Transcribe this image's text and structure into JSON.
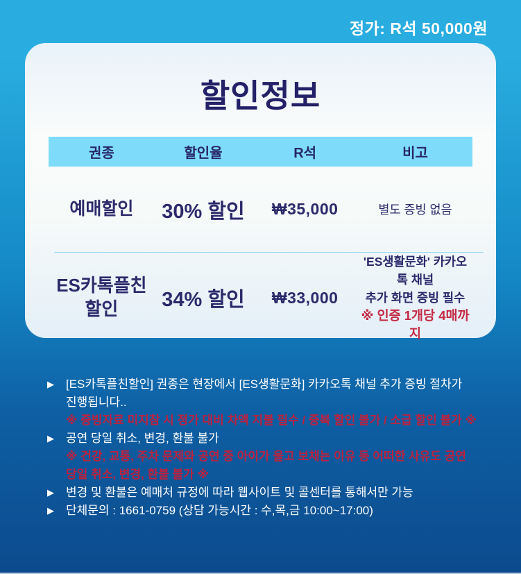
{
  "colors": {
    "page_top": "#29ade0",
    "page_bottom": "#0c4b8d",
    "card_bg": "#f4f9fa",
    "table_header_bg": "#7edcfa",
    "navy_text": "#2b2a6b",
    "warning_red_card": "#c42a44",
    "warning_red_notices": "#bb2340",
    "white_text": "#ffffff"
  },
  "header": {
    "price_label": "정가: R석 50,000원"
  },
  "card": {
    "title": "할인정보",
    "table": {
      "columns": [
        "권종",
        "할인율",
        "R석",
        "비고"
      ],
      "rows": [
        {
          "type": "예매할인",
          "discount": "30% 할인",
          "price": "₩35,000",
          "note": "별도 증빙 없음",
          "note_warning": ""
        },
        {
          "type": "ES카톡플친\n할인",
          "discount": "34% 할인",
          "price": "₩33,000",
          "note": "'ES생활문화' 카카오톡 채널\n추가 화면 증빙 필수",
          "note_warning": "※ 인증 1개당 4매까지"
        }
      ]
    }
  },
  "notices": {
    "bullet_glyph": "▶",
    "items": [
      {
        "style": "normal",
        "text": "[ES카톡플친할인] 권종은 현장에서 [ES생활문화] 카카오톡 채널 추가 증빙 절차가 진행됩니다.."
      },
      {
        "style": "warning",
        "text": "※ 증빙자료 미지참 시 정가 대비 차액 지불 필수 / 중복 할인 불가 / 소급 할인 불가 ※"
      },
      {
        "style": "normal",
        "text": "공연 당일 취소, 변경, 환불 불가"
      },
      {
        "style": "warning",
        "text": "※ 건강, 교통, 주차 문제와 공연 중 아이가 울고 보채는 이유 등 어떠한 사유도 공연 당일 취소, 변경, 환불 불가 ※"
      },
      {
        "style": "normal",
        "text": "변경 및 환불은 예매처 규정에 따라 웹사이트 및 콜센터를 통해서만 가능"
      },
      {
        "style": "normal",
        "text": "단체문의 : 1661-0759 (상담 가능시간 : 수,목,금 10:00~17:00)"
      }
    ]
  }
}
